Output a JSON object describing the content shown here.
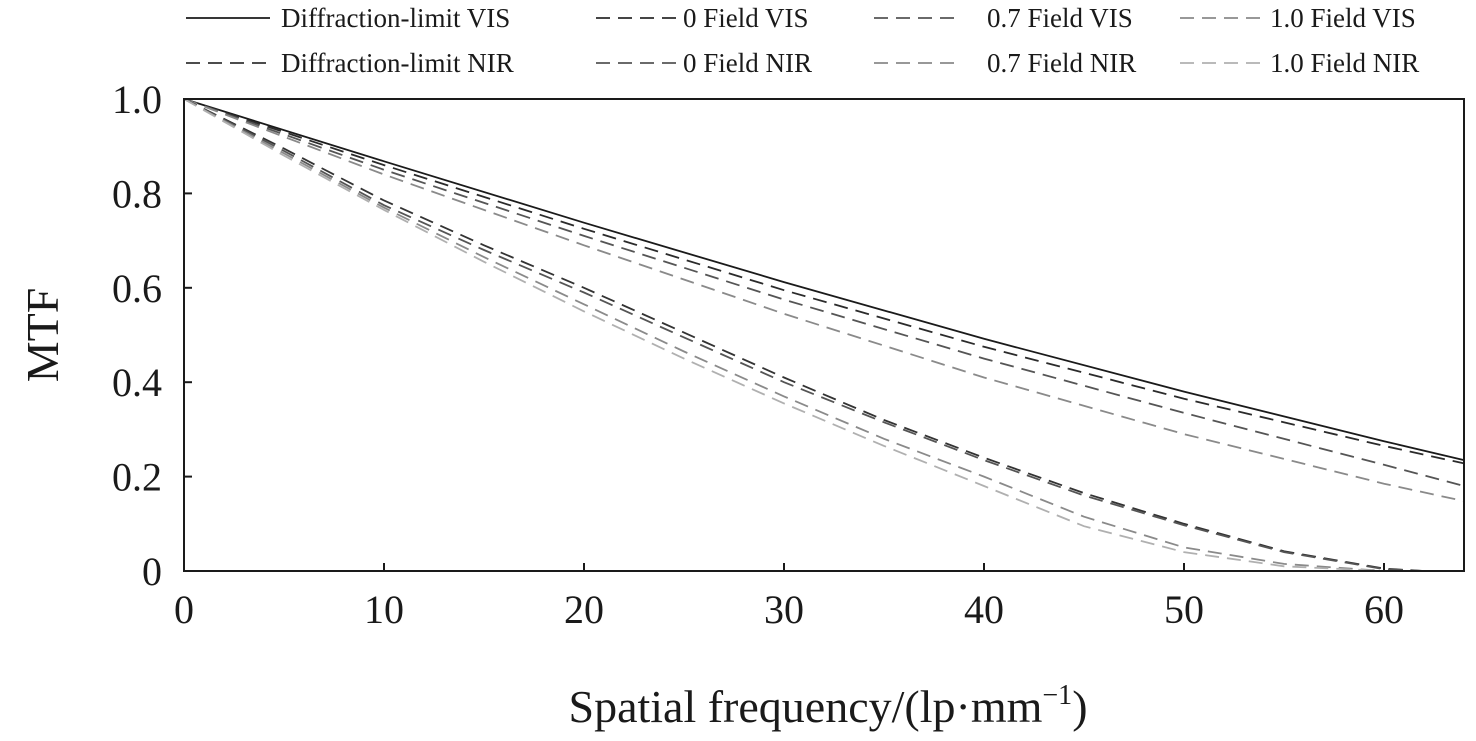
{
  "chart_data": {
    "type": "line",
    "title": "",
    "xlabel": "Spatial frequency/(lp·mm",
    "xlabel_superscript": "−1",
    "xlabel_close": ")",
    "ylabel": "MTF",
    "xlim": [
      0,
      64
    ],
    "ylim": [
      0,
      1.0
    ],
    "xticks": [
      0,
      10,
      20,
      30,
      40,
      50,
      60
    ],
    "xtick_labels": [
      "0",
      "10",
      "20",
      "30",
      "40",
      "50",
      "60"
    ],
    "yticks": [
      0,
      0.2,
      0.4,
      0.6,
      0.8,
      1.0
    ],
    "ytick_labels": [
      "0",
      "0.2",
      "0.4",
      "0.6",
      "0.8",
      "1.0"
    ],
    "grid": false,
    "legend_position": "top",
    "series": [
      {
        "name": "Diffraction-limit VIS",
        "style": "solid",
        "color": "#1a1a1a",
        "x": [
          0,
          10,
          20,
          30,
          40,
          50,
          60,
          64
        ],
        "y": [
          1.0,
          0.868,
          0.738,
          0.612,
          0.492,
          0.38,
          0.275,
          0.235
        ]
      },
      {
        "name": "0 Field VIS",
        "style": "dashed",
        "color": "#2b2b2b",
        "x": [
          0,
          10,
          20,
          30,
          40,
          50,
          60,
          64
        ],
        "y": [
          1.0,
          0.86,
          0.725,
          0.595,
          0.475,
          0.365,
          0.265,
          0.228
        ]
      },
      {
        "name": "0.7 Field VIS",
        "style": "dashed",
        "color": "#555555",
        "x": [
          0,
          10,
          20,
          30,
          40,
          50,
          60,
          64
        ],
        "y": [
          1.0,
          0.85,
          0.71,
          0.575,
          0.45,
          0.335,
          0.225,
          0.18
        ]
      },
      {
        "name": "1.0 Field VIS",
        "style": "dashed",
        "color": "#8a8a8a",
        "x": [
          0,
          10,
          20,
          30,
          40,
          50,
          60,
          64
        ],
        "y": [
          1.0,
          0.84,
          0.69,
          0.545,
          0.41,
          0.29,
          0.185,
          0.148
        ]
      },
      {
        "name": "Diffraction-limit NIR",
        "style": "dashed",
        "color": "#333333",
        "x": [
          0,
          5,
          10,
          15,
          20,
          25,
          30,
          35,
          40,
          45,
          50,
          55,
          60,
          62
        ],
        "y": [
          1.0,
          0.895,
          0.785,
          0.69,
          0.6,
          0.505,
          0.41,
          0.32,
          0.24,
          0.165,
          0.1,
          0.042,
          0.005,
          0.0
        ]
      },
      {
        "name": "0 Field NIR",
        "style": "dashed",
        "color": "#555555",
        "x": [
          0,
          5,
          10,
          15,
          20,
          25,
          30,
          35,
          40,
          45,
          50,
          55,
          60,
          62
        ],
        "y": [
          1.0,
          0.89,
          0.775,
          0.68,
          0.59,
          0.495,
          0.4,
          0.315,
          0.235,
          0.16,
          0.097,
          0.04,
          0.004,
          0.0
        ]
      },
      {
        "name": "0.7 Field NIR",
        "style": "dashed",
        "color": "#8a8a8a",
        "x": [
          0,
          5,
          10,
          15,
          20,
          25,
          30,
          35,
          40,
          45,
          50,
          55,
          60
        ],
        "y": [
          1.0,
          0.885,
          0.77,
          0.665,
          0.565,
          0.465,
          0.37,
          0.28,
          0.2,
          0.115,
          0.05,
          0.015,
          0.0
        ]
      },
      {
        "name": "1.0 Field NIR",
        "style": "dashed",
        "color": "#b0b0b0",
        "x": [
          0,
          5,
          10,
          15,
          20,
          25,
          30,
          35,
          40,
          45,
          50,
          55,
          60
        ],
        "y": [
          1.0,
          0.88,
          0.765,
          0.655,
          0.55,
          0.45,
          0.355,
          0.265,
          0.18,
          0.095,
          0.04,
          0.01,
          0.0
        ]
      }
    ]
  }
}
